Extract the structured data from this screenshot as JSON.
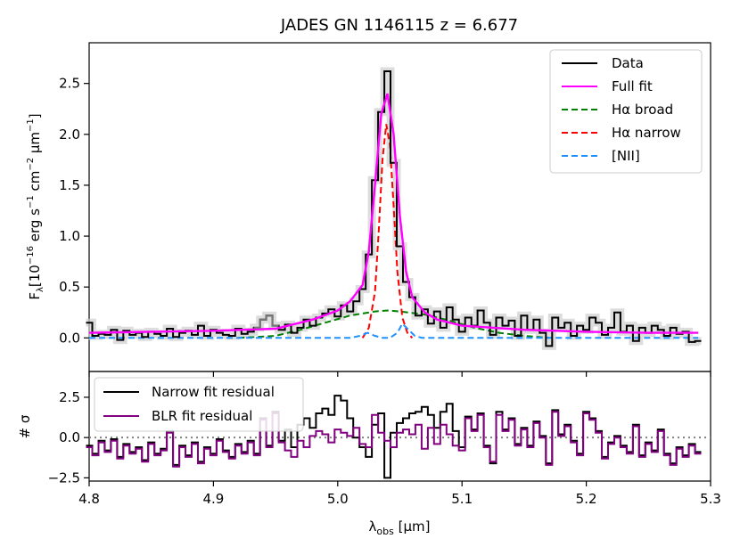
{
  "chart_data": {
    "type": "line",
    "title": "JADES GN 1146115 z = 6.677",
    "xlabel": "λobs [μm]",
    "xlabel_main": "λ",
    "xlabel_sub": "obs",
    "xlabel_unit": " [μm]",
    "xlim": [
      4.8,
      5.3
    ],
    "x_ticks": [
      4.8,
      4.9,
      5.0,
      5.1,
      5.2,
      5.3
    ],
    "x_tick_labels": [
      "4.8",
      "4.9",
      "5.0",
      "5.1",
      "5.2",
      "5.3"
    ],
    "top_panel": {
      "ylabel": "Fλ[10−16 erg s−1 cm−2 μm−1]",
      "ylim": [
        -0.33,
        2.9
      ],
      "y_ticks": [
        0.0,
        0.5,
        1.0,
        1.5,
        2.0,
        2.5
      ],
      "y_tick_labels": [
        "0.0",
        "0.5",
        "1.0",
        "1.5",
        "2.0",
        "2.5"
      ],
      "legend": {
        "location": "top-right",
        "entries": [
          {
            "label": "Data",
            "color": "#000000",
            "dash": "solid"
          },
          {
            "label": "Full fit",
            "color": "#ff00ff",
            "dash": "solid"
          },
          {
            "label": "Hα broad",
            "color": "#008000",
            "dash": "dashed"
          },
          {
            "label": "Hα narrow",
            "color": "#ff0000",
            "dash": "dashed"
          },
          {
            "label": "[NII]",
            "color": "#1e90ff",
            "dash": "dashed"
          }
        ]
      },
      "series": [
        {
          "name": "Data",
          "color": "#000000",
          "style": "steps",
          "x": [
            4.8,
            4.805,
            4.81,
            4.815,
            4.82,
            4.825,
            4.83,
            4.835,
            4.84,
            4.845,
            4.85,
            4.855,
            4.86,
            4.865,
            4.87,
            4.875,
            4.88,
            4.885,
            4.89,
            4.895,
            4.9,
            4.905,
            4.91,
            4.915,
            4.92,
            4.925,
            4.93,
            4.935,
            4.94,
            4.945,
            4.95,
            4.955,
            4.96,
            4.965,
            4.97,
            4.975,
            4.98,
            4.985,
            4.99,
            4.995,
            5.0,
            5.005,
            5.01,
            5.015,
            5.02,
            5.025,
            5.03,
            5.035,
            5.04,
            5.045,
            5.05,
            5.055,
            5.06,
            5.065,
            5.07,
            5.075,
            5.08,
            5.085,
            5.09,
            5.095,
            5.1,
            5.105,
            5.11,
            5.115,
            5.12,
            5.125,
            5.13,
            5.135,
            5.14,
            5.145,
            5.15,
            5.155,
            5.16,
            5.165,
            5.17,
            5.175,
            5.18,
            5.185,
            5.19,
            5.195,
            5.2,
            5.205,
            5.21,
            5.215,
            5.22,
            5.225,
            5.23,
            5.235,
            5.24,
            5.245,
            5.25,
            5.255,
            5.26,
            5.265,
            5.27,
            5.275,
            5.28,
            5.285,
            5.29
          ],
          "y": [
            0.15,
            0.02,
            0.04,
            0.03,
            0.08,
            -0.02,
            0.07,
            0.03,
            0.05,
            0.01,
            0.06,
            0.04,
            0.02,
            0.09,
            0.01,
            0.05,
            0.07,
            0.03,
            0.12,
            0.02,
            0.08,
            0.05,
            0.03,
            0.02,
            0.09,
            0.04,
            0.06,
            0.1,
            0.18,
            0.22,
            0.12,
            0.08,
            0.13,
            0.05,
            0.1,
            0.18,
            0.12,
            0.2,
            0.24,
            0.28,
            0.21,
            0.32,
            0.26,
            0.36,
            0.48,
            0.82,
            1.55,
            2.22,
            2.62,
            1.72,
            0.9,
            0.55,
            0.4,
            0.22,
            0.28,
            0.14,
            0.26,
            0.1,
            0.3,
            0.18,
            0.06,
            0.2,
            0.12,
            0.27,
            0.15,
            0.03,
            0.2,
            0.12,
            0.17,
            0.02,
            0.22,
            0.08,
            0.18,
            0.05,
            -0.08,
            0.2,
            0.1,
            0.15,
            0.02,
            0.12,
            0.08,
            0.2,
            0.15,
            0.03,
            0.1,
            0.25,
            0.06,
            0.12,
            -0.03,
            0.1,
            0.05,
            0.12,
            0.08,
            0.02,
            0.1,
            0.04,
            0.06,
            -0.04,
            -0.03
          ]
        },
        {
          "name": "Full fit",
          "color": "#ff00ff",
          "x": [
            4.8,
            4.85,
            4.9,
            4.95,
            4.98,
            5.0,
            5.01,
            5.02,
            5.025,
            5.03,
            5.035,
            5.04,
            5.045,
            5.05,
            5.055,
            5.06,
            5.07,
            5.08,
            5.1,
            5.15,
            5.2,
            5.25,
            5.29
          ],
          "y": [
            0.05,
            0.06,
            0.07,
            0.09,
            0.18,
            0.27,
            0.36,
            0.52,
            0.85,
            1.5,
            2.2,
            2.4,
            2.0,
            1.2,
            0.65,
            0.4,
            0.25,
            0.18,
            0.12,
            0.08,
            0.06,
            0.05,
            0.05
          ]
        },
        {
          "name": "Hα broad",
          "color": "#008000",
          "dash": true,
          "x": [
            4.92,
            4.95,
            4.97,
            4.99,
            5.01,
            5.03,
            5.04,
            5.05,
            5.07,
            5.09,
            5.11,
            5.13,
            5.15,
            5.17
          ],
          "y": [
            0.0,
            0.02,
            0.08,
            0.15,
            0.22,
            0.26,
            0.27,
            0.26,
            0.23,
            0.17,
            0.1,
            0.05,
            0.02,
            0.0
          ]
        },
        {
          "name": "Hα narrow",
          "color": "#ff0000",
          "dash": true,
          "x": [
            5.02,
            5.025,
            5.03,
            5.033,
            5.036,
            5.039,
            5.042,
            5.045,
            5.048,
            5.052,
            5.056,
            5.06
          ],
          "y": [
            0.0,
            0.1,
            0.45,
            1.05,
            1.75,
            2.1,
            1.9,
            1.3,
            0.65,
            0.2,
            0.05,
            0.0
          ]
        },
        {
          "name": "[NII]",
          "color": "#1e90ff",
          "dash": true,
          "x": [
            4.8,
            4.95,
            5.0,
            5.01,
            5.018,
            5.024,
            5.03,
            5.036,
            5.042,
            5.048,
            5.052,
            5.057,
            5.062,
            5.068,
            5.08,
            5.15,
            5.29
          ],
          "y": [
            0.0,
            0.0,
            0.0,
            0.0,
            0.02,
            0.05,
            0.02,
            0.0,
            0.0,
            0.05,
            0.14,
            0.08,
            0.02,
            0.0,
            0.0,
            0.0,
            0.0
          ]
        }
      ]
    },
    "bottom_panel": {
      "ylabel": "# σ",
      "ylim": [
        -2.7,
        4.1
      ],
      "y_ticks": [
        -2.5,
        0.0,
        2.5
      ],
      "y_tick_labels": [
        "−2.5",
        "0.0",
        "2.5"
      ],
      "legend": {
        "location": "top-left",
        "entries": [
          {
            "label": "Narrow fit residual",
            "color": "#000000"
          },
          {
            "label": "BLR fit residual",
            "color": "#800080"
          }
        ]
      },
      "series": [
        {
          "name": "Narrow fit residual",
          "color": "#000000",
          "style": "steps",
          "x": [
            4.8,
            4.805,
            4.81,
            4.815,
            4.82,
            4.825,
            4.83,
            4.835,
            4.84,
            4.845,
            4.85,
            4.855,
            4.86,
            4.865,
            4.87,
            4.875,
            4.88,
            4.885,
            4.89,
            4.895,
            4.9,
            4.905,
            4.91,
            4.915,
            4.92,
            4.925,
            4.93,
            4.935,
            4.94,
            4.945,
            4.95,
            4.955,
            4.96,
            4.965,
            4.97,
            4.975,
            4.98,
            4.985,
            4.99,
            4.995,
            5.0,
            5.005,
            5.01,
            5.015,
            5.02,
            5.025,
            5.03,
            5.035,
            5.04,
            5.045,
            5.05,
            5.055,
            5.06,
            5.065,
            5.07,
            5.075,
            5.08,
            5.085,
            5.09,
            5.095,
            5.1,
            5.105,
            5.11,
            5.115,
            5.12,
            5.125,
            5.13,
            5.135,
            5.14,
            5.145,
            5.15,
            5.155,
            5.16,
            5.165,
            5.17,
            5.175,
            5.18,
            5.185,
            5.19,
            5.195,
            5.2,
            5.205,
            5.21,
            5.215,
            5.22,
            5.225,
            5.23,
            5.235,
            5.24,
            5.245,
            5.25,
            5.255,
            5.26,
            5.265,
            5.27,
            5.275,
            5.28,
            5.285,
            5.29
          ],
          "y": [
            -0.5,
            -1.0,
            -0.2,
            -0.8,
            -0.1,
            -1.2,
            -0.4,
            -0.9,
            -0.6,
            -1.4,
            -0.3,
            -1.0,
            -0.7,
            0.4,
            -1.7,
            -0.5,
            -1.1,
            -0.3,
            -1.5,
            -0.6,
            -1.0,
            -0.1,
            -0.8,
            -1.2,
            -0.4,
            -0.9,
            -0.2,
            -1.0,
            1.2,
            -0.5,
            1.6,
            -0.2,
            0.5,
            -0.6,
            0.8,
            1.2,
            0.6,
            1.5,
            1.8,
            1.4,
            2.6,
            2.3,
            1.2,
            0.0,
            -0.6,
            -1.2,
            0.8,
            1.5,
            -2.5,
            0.3,
            0.9,
            1.2,
            1.5,
            1.6,
            1.9,
            1.4,
            0.6,
            1.6,
            2.1,
            0.4,
            -0.6,
            1.3,
            0.5,
            1.5,
            -0.5,
            -1.6,
            1.6,
            0.5,
            1.2,
            -0.4,
            0.6,
            -0.5,
            1.0,
            0.1,
            -1.6,
            1.7,
            0.2,
            0.8,
            -0.2,
            -1.0,
            1.6,
            1.2,
            0.4,
            -1.2,
            -0.3,
            0.1,
            -0.5,
            -0.9,
            0.8,
            -1.1,
            -0.3,
            -0.8,
            0.5,
            -1.0,
            -1.6,
            -0.6,
            -1.1,
            -0.4,
            -0.9
          ]
        },
        {
          "name": "BLR fit residual",
          "color": "#800080",
          "style": "steps",
          "x": [
            4.8,
            4.805,
            4.81,
            4.815,
            4.82,
            4.825,
            4.83,
            4.835,
            4.84,
            4.845,
            4.85,
            4.855,
            4.86,
            4.865,
            4.87,
            4.875,
            4.88,
            4.885,
            4.89,
            4.895,
            4.9,
            4.905,
            4.91,
            4.915,
            4.92,
            4.925,
            4.93,
            4.935,
            4.94,
            4.945,
            4.95,
            4.955,
            4.96,
            4.965,
            4.97,
            4.975,
            4.98,
            4.985,
            4.99,
            4.995,
            5.0,
            5.005,
            5.01,
            5.015,
            5.02,
            5.025,
            5.03,
            5.035,
            5.04,
            5.045,
            5.05,
            5.055,
            5.06,
            5.065,
            5.07,
            5.075,
            5.08,
            5.085,
            5.09,
            5.095,
            5.1,
            5.105,
            5.11,
            5.115,
            5.12,
            5.125,
            5.13,
            5.135,
            5.14,
            5.145,
            5.15,
            5.155,
            5.16,
            5.165,
            5.17,
            5.175,
            5.18,
            5.185,
            5.19,
            5.195,
            5.2,
            5.205,
            5.21,
            5.215,
            5.22,
            5.225,
            5.23,
            5.235,
            5.24,
            5.245,
            5.25,
            5.255,
            5.26,
            5.265,
            5.27,
            5.275,
            5.28,
            5.285,
            5.29
          ],
          "y": [
            -0.6,
            -1.1,
            -0.3,
            -0.9,
            -0.2,
            -1.3,
            -0.5,
            -1.0,
            -0.7,
            -1.5,
            -0.4,
            -1.1,
            -0.8,
            0.3,
            -1.8,
            -0.6,
            -1.2,
            -0.4,
            -1.6,
            -0.7,
            -1.1,
            -0.2,
            -0.9,
            -1.3,
            -0.5,
            -1.0,
            -0.3,
            -1.1,
            1.1,
            -0.6,
            1.5,
            -0.3,
            -0.8,
            -1.2,
            -0.2,
            -0.6,
            0.1,
            0.4,
            0.2,
            -0.3,
            0.5,
            0.3,
            0.1,
            0.6,
            -0.4,
            -0.6,
            1.4,
            0.3,
            -0.2,
            -0.6,
            0.3,
            0.5,
            0.2,
            0.8,
            -0.7,
            0.6,
            -0.4,
            0.8,
            0.2,
            -0.5,
            -0.8,
            1.2,
            0.4,
            1.4,
            -0.6,
            -1.5,
            1.4,
            0.4,
            1.1,
            -0.5,
            0.5,
            -0.6,
            0.9,
            0.0,
            -1.7,
            1.6,
            0.1,
            0.7,
            -0.3,
            -1.1,
            1.5,
            1.1,
            0.3,
            -1.3,
            -0.4,
            0.0,
            -0.6,
            -1.0,
            0.7,
            -1.2,
            -0.4,
            -0.9,
            0.4,
            -1.1,
            -1.7,
            -0.7,
            -1.2,
            -0.5,
            -1.0
          ]
        }
      ]
    }
  }
}
